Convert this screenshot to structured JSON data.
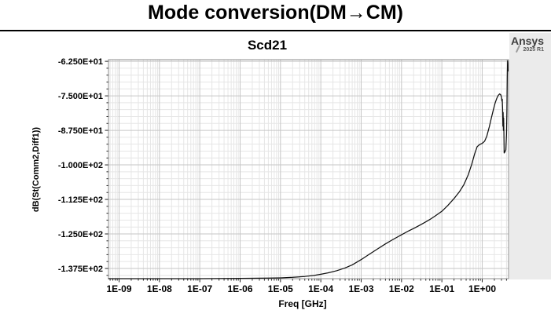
{
  "page": {
    "title": "Mode conversion(DM→CM)"
  },
  "chart": {
    "title": "Scd21",
    "brand": {
      "name": "Ansys",
      "version": "2025 R1"
    },
    "xlabel": "Freq [GHz]",
    "ylabel": "dB(St(Comm2,Diff1))"
  },
  "colors": {
    "curve": "#101010",
    "grid_minor": "#e6e6e6",
    "grid_major": "#c6c6c6",
    "plot_border": "#8c8c8c",
    "tick": "#222222",
    "margin_strip": "#ebebeb"
  },
  "chart_data": {
    "type": "line",
    "title": "Scd21",
    "xlabel": "Freq [GHz]",
    "ylabel": "dB(St(Comm2,Diff1))",
    "x_scale": "log",
    "grid": true,
    "legend": false,
    "xlim_log10": [
      -9.263,
      0.653
    ],
    "ylim": [
      -141.2,
      -61.9
    ],
    "x_tick_values": [
      1e-09,
      1e-08,
      1e-07,
      1e-06,
      1e-05,
      0.0001,
      0.001,
      0.01,
      0.1,
      1
    ],
    "x_tick_labels": [
      "1E-09",
      "1E-08",
      "1E-07",
      "1E-06",
      "1E-05",
      "1E-04",
      "1E-03",
      "1E-02",
      "1E-01",
      "1E+00"
    ],
    "y_tick_values": [
      -62.5,
      -75.0,
      -87.5,
      -100.0,
      -112.5,
      -125.0,
      -137.5
    ],
    "y_tick_labels": [
      "-6.250E+01",
      "-7.500E+01",
      "-8.750E+01",
      "-1.000E+02",
      "-1.125E+02",
      "-1.250E+02",
      "-1.375E+02"
    ],
    "y_minor_step": 2.5,
    "series": [
      {
        "name": "dB(St(Comm2,Diff1))",
        "color": "#101010",
        "points": [
          [
            5.5e-10,
            -141.2
          ],
          [
            1e-09,
            -141.2
          ],
          [
            1e-08,
            -141.2
          ],
          [
            1e-07,
            -141.2
          ],
          [
            1e-06,
            -141.1
          ],
          [
            5e-06,
            -141.0
          ],
          [
            1e-05,
            -140.9
          ],
          [
            2e-05,
            -140.7
          ],
          [
            4e-05,
            -140.4
          ],
          [
            7e-05,
            -140.0
          ],
          [
            0.0001,
            -139.6
          ],
          [
            0.00015,
            -139.1
          ],
          [
            0.00025,
            -138.3
          ],
          [
            0.0004,
            -137.3
          ],
          [
            0.0006,
            -136.2
          ],
          [
            0.001,
            -134.3
          ],
          [
            0.0015,
            -132.6
          ],
          [
            0.0025,
            -130.5
          ],
          [
            0.004,
            -128.6
          ],
          [
            0.006,
            -127.1
          ],
          [
            0.01,
            -125.3
          ],
          [
            0.015,
            -123.9
          ],
          [
            0.022,
            -122.7
          ],
          [
            0.035,
            -121.1
          ],
          [
            0.05,
            -119.8
          ],
          [
            0.07,
            -118.4
          ],
          [
            0.1,
            -116.8
          ],
          [
            0.14,
            -114.7
          ],
          [
            0.2,
            -112.2
          ],
          [
            0.27,
            -109.8
          ],
          [
            0.35,
            -107.2
          ],
          [
            0.45,
            -103.6
          ],
          [
            0.55,
            -99.8
          ],
          [
            0.65,
            -96.0
          ],
          [
            0.75,
            -93.4
          ],
          [
            0.85,
            -92.7
          ],
          [
            1.0,
            -92.2
          ],
          [
            1.15,
            -91.4
          ],
          [
            1.3,
            -89.6
          ],
          [
            1.5,
            -86.2
          ],
          [
            1.7,
            -82.8
          ],
          [
            1.9,
            -79.9
          ],
          [
            2.1,
            -77.5
          ],
          [
            2.3,
            -75.9
          ],
          [
            2.5,
            -74.8
          ],
          [
            2.7,
            -74.3
          ],
          [
            2.9,
            -74.7
          ],
          [
            3.0,
            -75.5
          ],
          [
            3.08,
            -76.9
          ],
          [
            3.14,
            -76.2
          ],
          [
            3.2,
            -79.5
          ],
          [
            3.25,
            -86.0
          ],
          [
            3.3,
            -81.0
          ],
          [
            3.35,
            -87.5
          ],
          [
            3.4,
            -83.0
          ],
          [
            3.45,
            -88.5
          ],
          [
            3.5,
            -95.7
          ],
          [
            3.65,
            -95.3
          ],
          [
            3.85,
            -94.5
          ],
          [
            4.0,
            -89.0
          ],
          [
            4.1,
            -80.0
          ],
          [
            4.18,
            -68.0
          ],
          [
            4.25,
            -62.3
          ],
          [
            4.32,
            -63.5
          ],
          [
            4.36,
            -66.0
          ]
        ]
      }
    ]
  }
}
